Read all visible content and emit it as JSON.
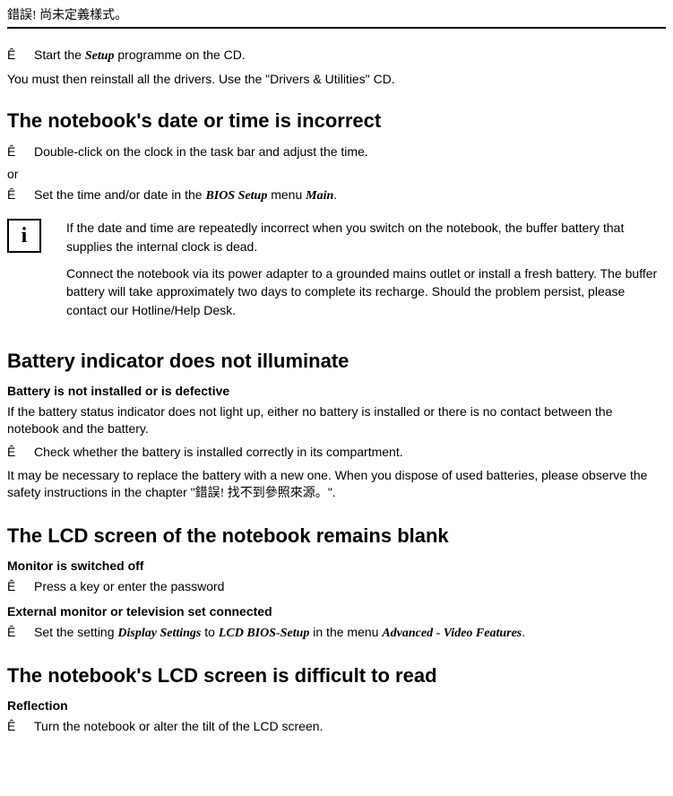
{
  "header": {
    "text": "錯誤! 尚未定義樣式。"
  },
  "intro": {
    "bullet_mark": "Ê",
    "line1_prefix": "Start the ",
    "line1_em": "Setup",
    "line1_suffix": " programme on the CD.",
    "line2": "You must then reinstall all the drivers. Use the \"Drivers & Utilities\" CD."
  },
  "sec_datetime": {
    "title": "The notebook's date or time is incorrect",
    "b1": "Double-click on the clock in the task bar and adjust the time.",
    "or": "or",
    "b2_prefix": "Set the time and/or date in the ",
    "b2_em1": "BIOS Setup",
    "b2_mid": " menu ",
    "b2_em2": "Main",
    "b2_suffix": ".",
    "info_icon": "i",
    "info_p1": "If the date and time are repeatedly incorrect when you switch on the notebook, the buffer battery that supplies the internal clock is dead.",
    "info_p2": "Connect the notebook via its power adapter to a grounded mains outlet or install a fresh battery. The buffer battery will take approximately two days to complete its recharge. Should the problem persist, please contact our Hotline/Help Desk."
  },
  "sec_battery": {
    "title": "Battery indicator does not illuminate",
    "sub": "Battery is not installed or is defective",
    "p1": "If the battery status indicator does not light up, either no battery is installed or there is no contact between the notebook and the battery.",
    "b1": "Check whether the battery is installed correctly in its compartment.",
    "p2_prefix": "It may be necessary to replace the battery with a new one. When you dispose of used batteries, please observe the safety instructions in the chapter \"",
    "p2_cjk": "錯誤! 找不到參照來源。",
    "p2_suffix": "\"."
  },
  "sec_lcd_blank": {
    "title": "The LCD screen of the notebook remains blank",
    "sub1": "Monitor is switched off",
    "b1": "Press a key or enter the password",
    "sub2": "External monitor or television set connected",
    "b2_prefix": "Set the setting ",
    "b2_em1": "Display Settings",
    "b2_mid1": " to ",
    "b2_em2": "LCD BIOS-Setup",
    "b2_mid2": " in the menu ",
    "b2_em3": "Advanced - Video Features",
    "b2_suffix": "."
  },
  "sec_lcd_read": {
    "title": "The notebook's LCD screen is difficult to read",
    "sub": "Reflection",
    "b1": "Turn the notebook or alter the tilt of the LCD screen."
  }
}
